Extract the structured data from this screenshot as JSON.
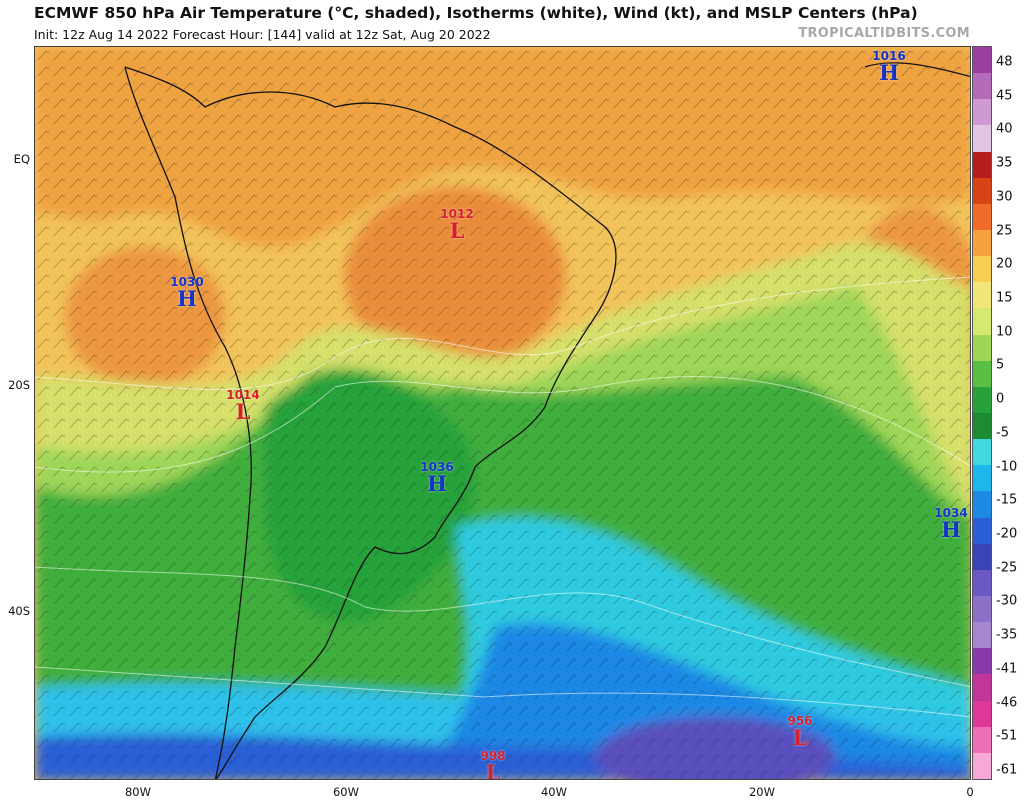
{
  "header": {
    "title": "ECMWF 850 hPa Air Temperature (°C, shaded), Isotherms (white), Wind (kt), and MSLP Centers (hPa)",
    "subtitle": "Init: 12z Aug 14 2022   Forecast Hour: [144]   valid at 12z Sat, Aug 20 2022",
    "source": "TROPICALTIDBITS.COM"
  },
  "axes": {
    "lat_labels": [
      "EQ",
      "20S",
      "40S"
    ],
    "lon_labels": [
      "80W",
      "60W",
      "40W",
      "20W",
      "0"
    ]
  },
  "colorbar": {
    "labels": [
      "48",
      "45",
      "40",
      "35",
      "30",
      "25",
      "20",
      "15",
      "10",
      "5",
      "0",
      "-5",
      "-10",
      "-15",
      "-20",
      "-25",
      "-30",
      "-35",
      "-41",
      "-46",
      "-51",
      "-61"
    ],
    "colors": [
      "#9b3f9e",
      "#b46cba",
      "#cf9ad2",
      "#e3c5e3",
      "#b71c1c",
      "#d84315",
      "#ef6c2c",
      "#f5a23f",
      "#f6cf52",
      "#f2e67a",
      "#d6e772",
      "#9fd658",
      "#5cbf45",
      "#27a23a",
      "#1d8a34",
      "#41d9e0",
      "#1fb6ec",
      "#1e88e5",
      "#2c5fd6",
      "#3a43b8",
      "#6a59c0",
      "#8a70c6",
      "#a487cc",
      "#8a3aa8",
      "#c2359a",
      "#e0379a",
      "#ef6fb6",
      "#f6a9d6"
    ]
  },
  "pressure_centers": [
    {
      "id": "h-1016",
      "type": "H",
      "value": "1016"
    },
    {
      "id": "l-1012",
      "type": "L",
      "value": "1012"
    },
    {
      "id": "h-1030",
      "type": "H",
      "value": "1030"
    },
    {
      "id": "l-1014",
      "type": "L",
      "value": "1014"
    },
    {
      "id": "h-1036",
      "type": "H",
      "value": "1036"
    },
    {
      "id": "h-1034",
      "type": "H",
      "value": "1034"
    },
    {
      "id": "l-956",
      "type": "L",
      "value": "956"
    },
    {
      "id": "l-998",
      "type": "L",
      "value": "998"
    }
  ]
}
